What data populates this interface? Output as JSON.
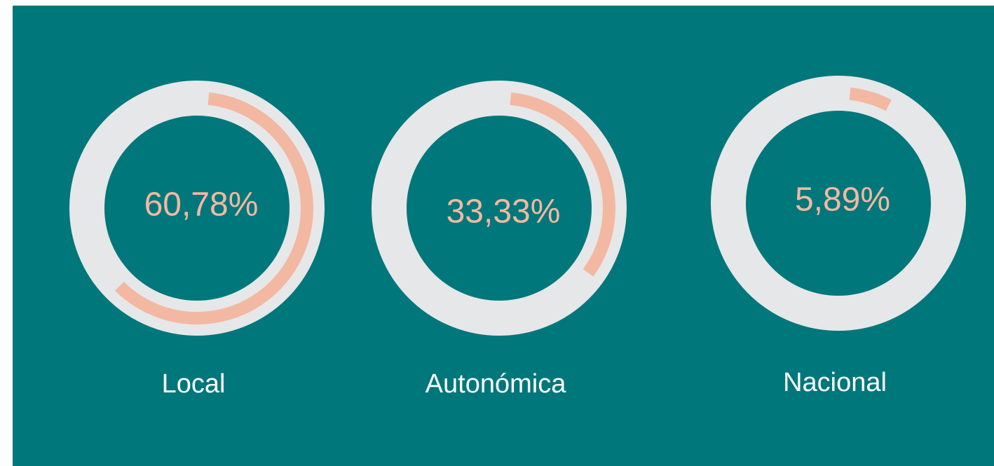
{
  "chart_data": {
    "type": "donut",
    "categories": [
      "Local",
      "Autonómica",
      "Nacional"
    ],
    "values": [
      60.78,
      33.33,
      5.89
    ],
    "value_labels": [
      "60,78%",
      "33,33%",
      "5,89%"
    ],
    "color": "#f2b8a2",
    "track_color": "#e6e7e8",
    "background": "#00777b"
  }
}
